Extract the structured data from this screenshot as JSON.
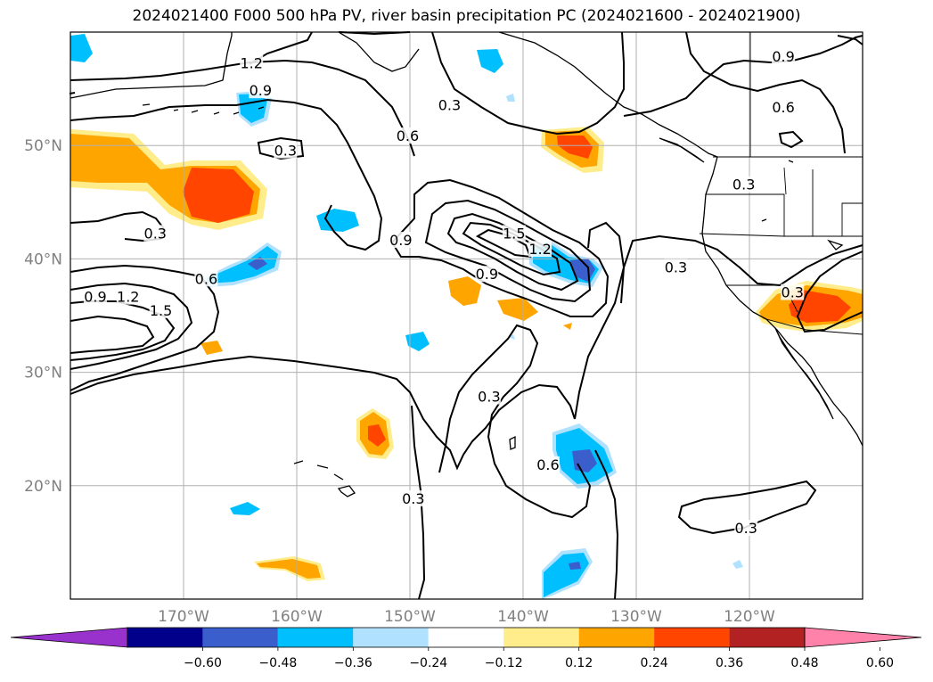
{
  "title": "2024021400 F000 500 hPa PV, river basin precipitation PC (2024021600 - 2024021900)",
  "map": {
    "lon_range": [
      -180,
      -110
    ],
    "lat_range": [
      10,
      60
    ],
    "lon_ticks": [
      {
        "lon": -170,
        "label": "170°W"
      },
      {
        "lon": -160,
        "label": "160°W"
      },
      {
        "lon": -150,
        "label": "150°W"
      },
      {
        "lon": -140,
        "label": "140°W"
      },
      {
        "lon": -130,
        "label": "130°W"
      },
      {
        "lon": -120,
        "label": "120°W"
      }
    ],
    "lat_ticks": [
      {
        "lat": 50,
        "label": "50°N"
      },
      {
        "lat": 40,
        "label": "40°N"
      },
      {
        "lat": 30,
        "label": "30°N"
      },
      {
        "lat": 20,
        "label": "20°N"
      }
    ],
    "contour_labels": [
      {
        "text": "1.2",
        "lon": -164,
        "lat": 57.2
      },
      {
        "text": "0.9",
        "lon": -163.2,
        "lat": 54.8
      },
      {
        "text": "0.3",
        "lon": -161,
        "lat": 49.5
      },
      {
        "text": "0.6",
        "lon": -150.2,
        "lat": 50.8
      },
      {
        "text": "0.3",
        "lon": -146.5,
        "lat": 53.5
      },
      {
        "text": "0.9",
        "lon": -150.8,
        "lat": 41.6
      },
      {
        "text": "0.3",
        "lon": -172.5,
        "lat": 42.2
      },
      {
        "text": "0.6",
        "lon": -168,
        "lat": 38.2
      },
      {
        "text": "0.9",
        "lon": -177.8,
        "lat": 36.6
      },
      {
        "text": "1.2",
        "lon": -174.9,
        "lat": 36.6
      },
      {
        "text": "1.5",
        "lon": -172,
        "lat": 35.4
      },
      {
        "text": "1.5",
        "lon": -140.8,
        "lat": 42.2
      },
      {
        "text": "1.2",
        "lon": -138.5,
        "lat": 40.8
      },
      {
        "text": "0.9",
        "lon": -143.2,
        "lat": 38.6
      },
      {
        "text": "0.3",
        "lon": -126.5,
        "lat": 39.2
      },
      {
        "text": "0.3",
        "lon": -120.5,
        "lat": 46.5
      },
      {
        "text": "0.9",
        "lon": -117,
        "lat": 57.8
      },
      {
        "text": "0.6",
        "lon": -117,
        "lat": 53.3
      },
      {
        "text": "0.3",
        "lon": -143,
        "lat": 27.8
      },
      {
        "text": "0.6",
        "lon": -137.8,
        "lat": 21.8
      },
      {
        "text": "0.3",
        "lon": -149.7,
        "lat": 18.8
      },
      {
        "text": "0.3",
        "lon": -120.3,
        "lat": 16.2
      },
      {
        "text": "0.3",
        "lon": -116.2,
        "lat": 37
      }
    ]
  },
  "colorbar": {
    "colors": [
      "#9932cc",
      "#00008b",
      "#3a5fcd",
      "#00bfff",
      "#b0e2ff",
      "#ffffff",
      "#ffec8b",
      "#ffa500",
      "#ff4500",
      "#b22222",
      "#ff82ab"
    ],
    "ticks": [
      "−0.60",
      "−0.48",
      "−0.36",
      "−0.24",
      "−0.12",
      "0.12",
      "0.24",
      "0.36",
      "0.48",
      "0.60"
    ]
  },
  "colors": {
    "grid": "#b0b0b0",
    "tick_label": "#808080",
    "contour": "#000000"
  }
}
